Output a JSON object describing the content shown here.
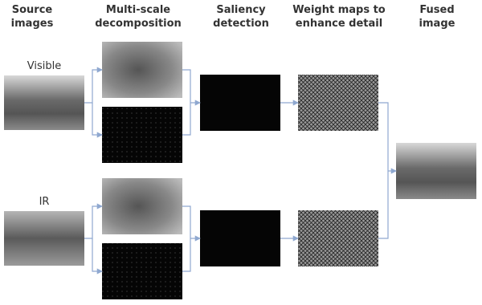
{
  "columns": [
    {
      "lines": [
        "Source",
        "images"
      ]
    },
    {
      "lines": [
        "Multi-scale",
        "decomposition"
      ]
    },
    {
      "lines": [
        "Saliency",
        "detection"
      ]
    },
    {
      "lines": [
        "Weight maps to",
        "enhance detail"
      ]
    },
    {
      "lines": [
        "Fused",
        "image"
      ]
    }
  ],
  "labels": {
    "visible": "Visible",
    "ir": "IR"
  }
}
